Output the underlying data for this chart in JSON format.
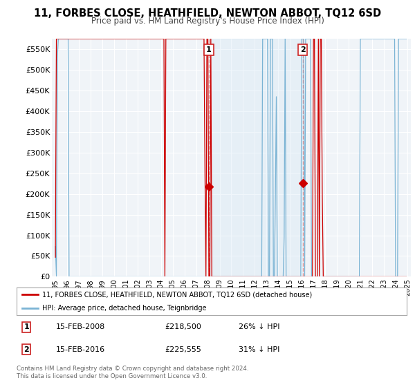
{
  "title": "11, FORBES CLOSE, HEATHFIELD, NEWTON ABBOT, TQ12 6SD",
  "subtitle": "Price paid vs. HM Land Registry's House Price Index (HPI)",
  "legend_line1": "11, FORBES CLOSE, HEATHFIELD, NEWTON ABBOT, TQ12 6SD (detached house)",
  "legend_line2": "HPI: Average price, detached house, Teignbridge",
  "annotation1_date": "15-FEB-2008",
  "annotation1_price": "£218,500",
  "annotation1_hpi": "26% ↓ HPI",
  "annotation2_date": "15-FEB-2016",
  "annotation2_price": "£225,555",
  "annotation2_hpi": "31% ↓ HPI",
  "footnote": "Contains HM Land Registry data © Crown copyright and database right 2024.\nThis data is licensed under the Open Government Licence v3.0.",
  "hpi_color": "#7ab3d4",
  "price_color": "#cc0000",
  "shade_color": "#d6e8f5",
  "dashed_line_color": "#e89999",
  "bg_color": "#f0f4f8",
  "grid_color": "#ffffff",
  "ylim_min": 0,
  "ylim_max": 575000,
  "yticks": [
    0,
    50000,
    100000,
    150000,
    200000,
    250000,
    300000,
    350000,
    400000,
    450000,
    500000,
    550000
  ]
}
